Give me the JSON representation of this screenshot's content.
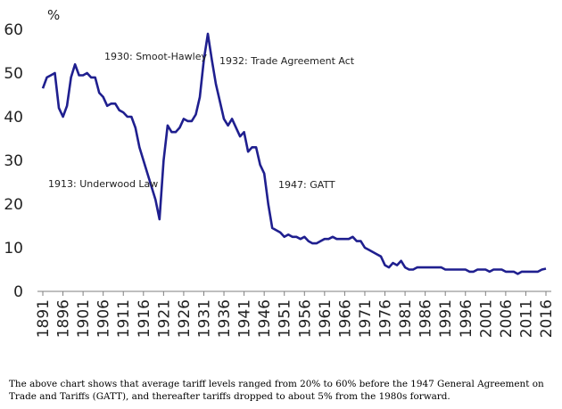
{
  "chart_data": {
    "type": "line",
    "unit_label": "%",
    "ylim": [
      0,
      60
    ],
    "y_ticks": [
      0,
      10,
      20,
      30,
      40,
      50,
      60
    ],
    "x_tick_labels": [
      "1891",
      "1896",
      "1901",
      "1906",
      "1911",
      "1916",
      "1921",
      "1926",
      "1931",
      "1936",
      "1941",
      "1946",
      "1951",
      "1956",
      "1961",
      "1966",
      "1971",
      "1976",
      "1981",
      "1986",
      "1991",
      "1996",
      "2001",
      "2006",
      "2011",
      "2016"
    ],
    "xlim": [
      1891,
      2016
    ],
    "series_color": "#1f1f8f",
    "x": [
      1891,
      1892,
      1893,
      1894,
      1895,
      1896,
      1897,
      1898,
      1899,
      1900,
      1901,
      1902,
      1903,
      1904,
      1905,
      1906,
      1907,
      1908,
      1909,
      1910,
      1911,
      1912,
      1913,
      1914,
      1915,
      1916,
      1917,
      1918,
      1919,
      1920,
      1921,
      1922,
      1923,
      1924,
      1925,
      1926,
      1927,
      1928,
      1929,
      1930,
      1931,
      1932,
      1933,
      1934,
      1935,
      1936,
      1937,
      1938,
      1939,
      1940,
      1941,
      1942,
      1943,
      1944,
      1945,
      1946,
      1947,
      1948,
      1949,
      1950,
      1951,
      1952,
      1953,
      1954,
      1955,
      1956,
      1957,
      1958,
      1959,
      1960,
      1961,
      1962,
      1963,
      1964,
      1965,
      1966,
      1967,
      1968,
      1969,
      1970,
      1971,
      1972,
      1973,
      1974,
      1975,
      1976,
      1977,
      1978,
      1979,
      1980,
      1981,
      1982,
      1983,
      1984,
      1985,
      1986,
      1987,
      1988,
      1989,
      1990,
      1991,
      1992,
      1993,
      1994,
      1995,
      1996,
      1997,
      1998,
      1999,
      2000,
      2001,
      2002,
      2003,
      2004,
      2005,
      2006,
      2007,
      2008,
      2009,
      2010,
      2011,
      2012,
      2013,
      2014,
      2015,
      2016
    ],
    "values": [
      46.5,
      49,
      49.5,
      50,
      42,
      40,
      42.5,
      49,
      52,
      49.5,
      49.5,
      50,
      49,
      49,
      45.5,
      44.5,
      42.5,
      43,
      43,
      41.5,
      41,
      40,
      40,
      37.5,
      33,
      30,
      27,
      24,
      21,
      16.5,
      30,
      38,
      36.5,
      36.5,
      37.5,
      39.5,
      39,
      39,
      40.5,
      44.5,
      53,
      59,
      53,
      47.5,
      43.5,
      39.5,
      38,
      39.5,
      37.5,
      35.5,
      36.5,
      32,
      33,
      33,
      29,
      27,
      20,
      14.5,
      14,
      13.5,
      12.5,
      13,
      12.5,
      12.5,
      12,
      12.5,
      11.5,
      11,
      11,
      11.5,
      12,
      12,
      12.5,
      12,
      12,
      12,
      12,
      12.5,
      11.5,
      11.5,
      10,
      9.5,
      9,
      8.5,
      8,
      6,
      5.5,
      6.5,
      6,
      7,
      5.5,
      5,
      5,
      5.5,
      5.5,
      5.5,
      5.5,
      5.5,
      5.5,
      5.5,
      5,
      5,
      5,
      5,
      5,
      5,
      4.5,
      4.5,
      5,
      5,
      5,
      4.5,
      5,
      5,
      5,
      4.5,
      4.5,
      4.5,
      4,
      4.5,
      4.5,
      4.5,
      4.5,
      4.5,
      5,
      5.2
    ],
    "annotations": [
      {
        "text": "1930: Smoot-Hawley"
      },
      {
        "text": "1932: Trade Agreement Act"
      },
      {
        "text": "1913: Underwood Law"
      },
      {
        "text": "1947: GATT"
      }
    ]
  },
  "caption": "The above chart shows that average tariff levels ranged from 20% to 60% before the 1947 General Agreement on\nTrade and Tariffs (GATT),  and thereafter tariffs dropped to about 5% from the 1980s forward."
}
